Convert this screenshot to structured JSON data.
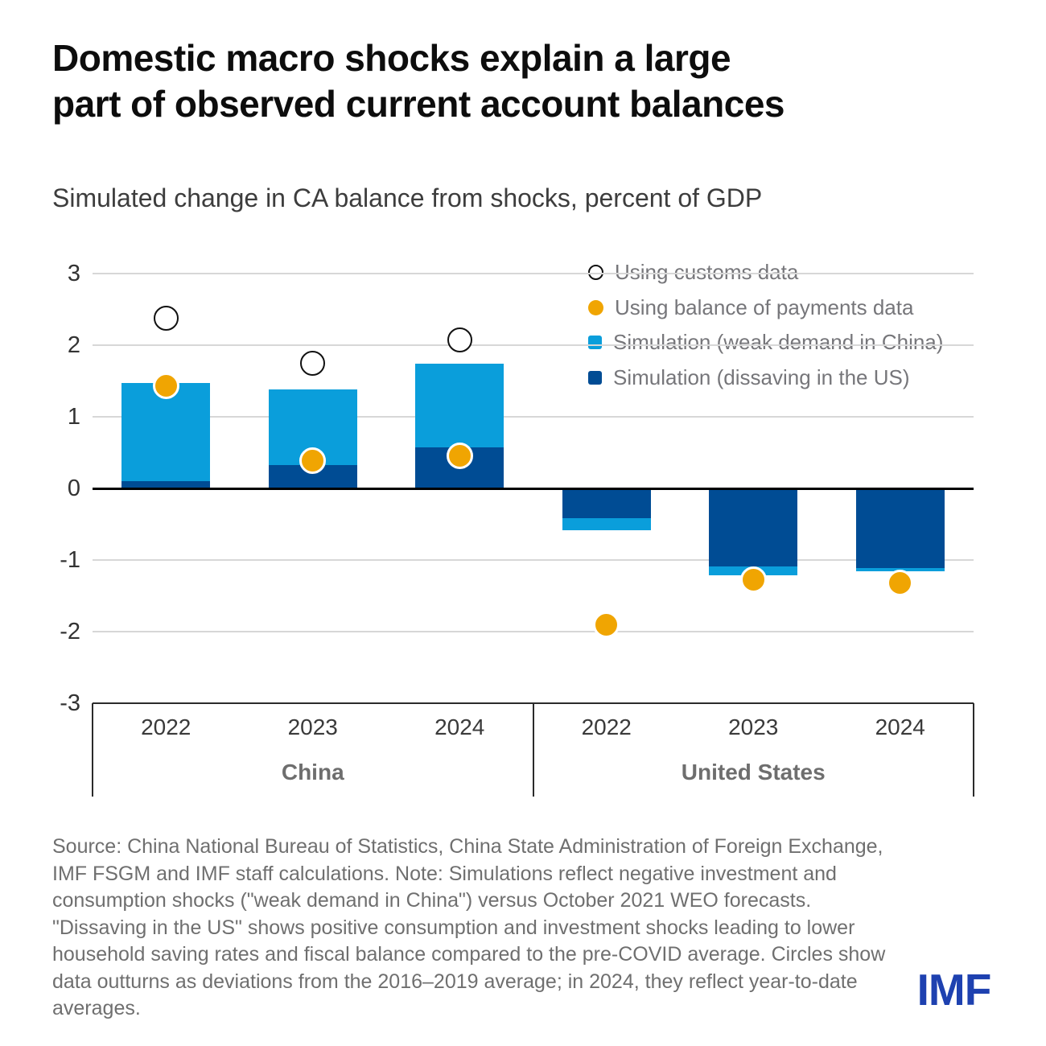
{
  "header": {
    "title_line1": "Domestic macro shocks explain a large",
    "title_line2": "part of observed current account balances",
    "subtitle": "Simulated change in CA balance from shocks, percent of GDP"
  },
  "chart_data": {
    "type": "bar",
    "stacked": true,
    "title": "Simulated change in CA balance from shocks, percent of GDP",
    "xlabel": "",
    "ylabel": "",
    "ylim": [
      -3,
      3
    ],
    "yticks": [
      3,
      2,
      1,
      0,
      -1,
      -2,
      -3
    ],
    "grid": true,
    "legend_position": "top-right",
    "group_labels": [
      "China",
      "United States"
    ],
    "categories": [
      "2022",
      "2023",
      "2024",
      "2022",
      "2023",
      "2024"
    ],
    "category_groups": [
      "China",
      "China",
      "China",
      "United States",
      "United States",
      "United States"
    ],
    "bar_series": [
      {
        "name": "Simulation (dissaving in the US)",
        "color_key": "dark_blue",
        "values": [
          0.1,
          0.33,
          0.57,
          -0.42,
          -1.09,
          -1.11
        ]
      },
      {
        "name": "Simulation (weak demand in China)",
        "color_key": "light_blue",
        "values": [
          1.37,
          1.05,
          1.17,
          -0.16,
          -0.12,
          -0.05
        ]
      }
    ],
    "point_series": [
      {
        "name": "Using customs data",
        "marker": "open-circle",
        "color_key": null,
        "values": [
          2.38,
          1.75,
          2.07,
          null,
          null,
          null
        ]
      },
      {
        "name": "Using balance of payments data",
        "marker": "filled-circle",
        "color_key": "orange",
        "values": [
          1.43,
          0.39,
          0.45,
          -1.9,
          -1.28,
          -1.32
        ]
      }
    ]
  },
  "legend": {
    "items": [
      {
        "label": "Using customs data",
        "marker": "open-circle"
      },
      {
        "label": "Using balance of payments data",
        "marker": "filled-circle"
      },
      {
        "label": "Simulation (weak demand in China)",
        "marker": "square-light-blue"
      },
      {
        "label": "Simulation (dissaving in the US)",
        "marker": "square-dark-blue"
      }
    ]
  },
  "footer": {
    "source_note": "Source: China National Bureau of Statistics, China State Administration of Foreign Exchange, IMF FSGM and IMF staff calculations. Note: Simulations reflect negative investment and consumption shocks (\"weak demand in China\") versus October 2021 WEO forecasts. \"Dissaving in the US\" shows positive consumption and investment shocks leading to lower household saving rates and fiscal balance compared to the pre-COVID average. Circles show data outturns as deviations from the 2016–2019 average; in 2024, they reflect year-to-date averages.",
    "logo_text": "IMF"
  },
  "colors": {
    "light_blue": "#0A9EDB",
    "dark_blue": "#004C94",
    "orange": "#F0A502",
    "logo_blue": "#1E41B0",
    "grid": "#D7D7D7",
    "zero_line": "#000000",
    "axis_line": "#2B2B2B"
  }
}
